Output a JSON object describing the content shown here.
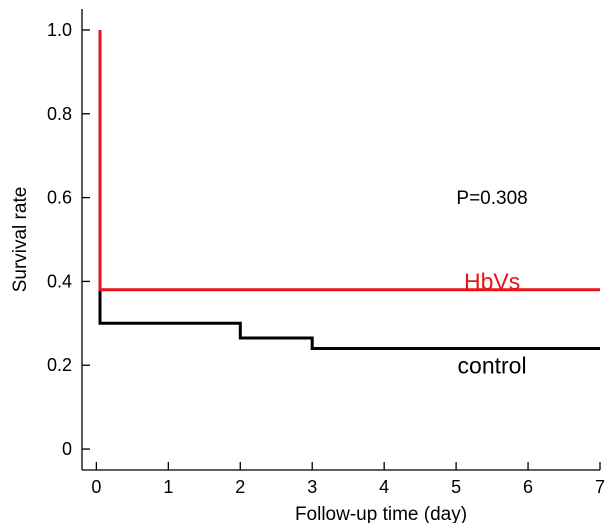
{
  "chart_data": {
    "type": "line",
    "step": true,
    "xlabel": "Follow-up time (day)",
    "ylabel": "Survival rate",
    "xlim": [
      -0.2,
      7
    ],
    "ylim": [
      -0.05,
      1.05
    ],
    "x_ticks": [
      0,
      1,
      2,
      3,
      4,
      5,
      6,
      7
    ],
    "y_ticks": [
      0,
      0.2,
      0.4,
      0.6,
      0.8,
      1.0
    ],
    "y_tick_labels": [
      "0",
      "0.2",
      "0.4",
      "0.6",
      "0.8",
      "1.0"
    ],
    "grid": false,
    "series": [
      {
        "name": "HbVs",
        "color": "#e8141c",
        "points": [
          [
            0.05,
            1.0
          ],
          [
            0.05,
            0.38
          ],
          [
            7.0,
            0.38
          ]
        ]
      },
      {
        "name": "control",
        "color": "#000000",
        "points": [
          [
            0.05,
            0.38
          ],
          [
            0.05,
            0.3
          ],
          [
            2.0,
            0.3
          ],
          [
            2.0,
            0.265
          ],
          [
            3.0,
            0.265
          ],
          [
            3.0,
            0.24
          ],
          [
            7.0,
            0.24
          ]
        ]
      }
    ],
    "annotations": [
      {
        "text": "P=0.308",
        "x": 5.5,
        "y": 0.6,
        "color": "#000000",
        "size": "small"
      },
      {
        "text": "HbVs",
        "x": 5.5,
        "y": 0.4,
        "color": "#e8141c",
        "size": "large"
      },
      {
        "text": "control",
        "x": 5.5,
        "y": 0.2,
        "color": "#000000",
        "size": "large"
      }
    ]
  }
}
